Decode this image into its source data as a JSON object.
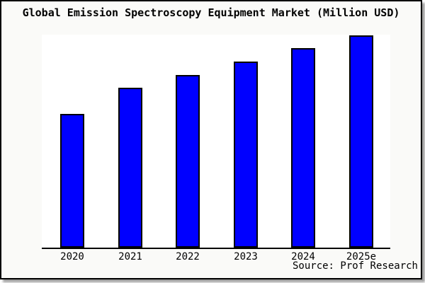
{
  "window": {
    "background_color": "#fafaf8",
    "frame_border_color": "#000000",
    "shadow_color": "#999999"
  },
  "chart_data": {
    "type": "bar",
    "title": "Global Emission Spectroscopy Equipment Market (Million USD)",
    "categories": [
      "2020",
      "2021",
      "2022",
      "2023",
      "2024",
      "2025e"
    ],
    "values": [
      190,
      227,
      246,
      265,
      284,
      302
    ],
    "ylim": [
      0,
      303
    ],
    "y_axis_labeled": false,
    "grid": false,
    "legend": false,
    "xlabel": "",
    "ylabel": "",
    "bar_color": "#0000ff",
    "bar_border_color": "#000000",
    "axis_color": "#000000",
    "plot_background": "#ffffff"
  },
  "footer": {
    "source_label": "Source: Prof Research"
  }
}
